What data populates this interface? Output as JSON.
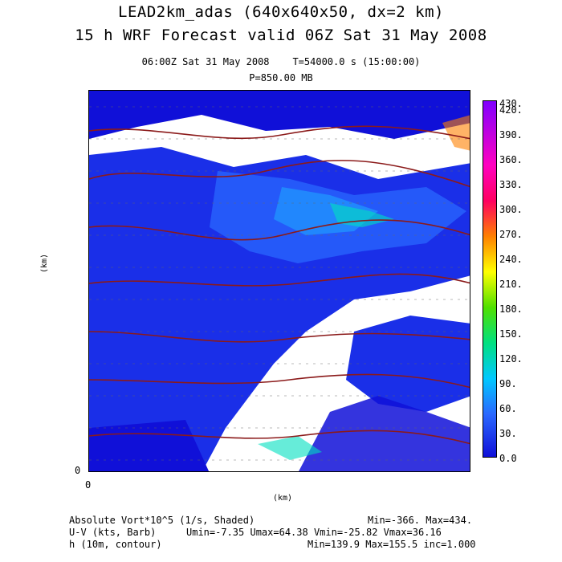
{
  "title_line1": "LEAD2km_adas (640x640x50, dx=2 km)",
  "title_line2": "15 h WRF Forecast valid 06Z Sat 31 May 2008",
  "header_time": "06:00Z Sat 31 May 2008",
  "header_T": "T=54000.0 s (15:00:00)",
  "header_pressure": "P=850.00 MB",
  "y_axis_label": "(km)",
  "x_axis_label": "(km)",
  "origin_x": "0",
  "origin_y": "0",
  "colorbar": {
    "labels": [
      "420.",
      "390.",
      "360.",
      "330.",
      "300.",
      "270.",
      "240.",
      "210.",
      "180.",
      "150.",
      "120.",
      "90.",
      "60.",
      "30.",
      "0.0"
    ],
    "top_label": "430.",
    "colors": [
      "#1010d8",
      "#1a3fff",
      "#2a68ff",
      "#1f9bff",
      "#00c8ff",
      "#00e0c0",
      "#00e080",
      "#50e000",
      "#c0e000",
      "#ffff00",
      "#ffc000",
      "#ff8000",
      "#ff3000",
      "#ff0060",
      "#ff00c0",
      "#c000ff",
      "#8000ff"
    ]
  },
  "footer": {
    "line1_left": "Absolute Vort*10^5 (1/s, Shaded)",
    "line1_right": "Min=-366. Max=434.",
    "line2_left": "U-V (kts, Barb)",
    "line2_right": "Umin=-7.35 Umax=64.38 Vmin=-25.82 Vmax=36.16",
    "line3_left": "h (10m, contour)",
    "line3_right": "Min=139.9 Max=155.5 inc=1.000"
  }
}
